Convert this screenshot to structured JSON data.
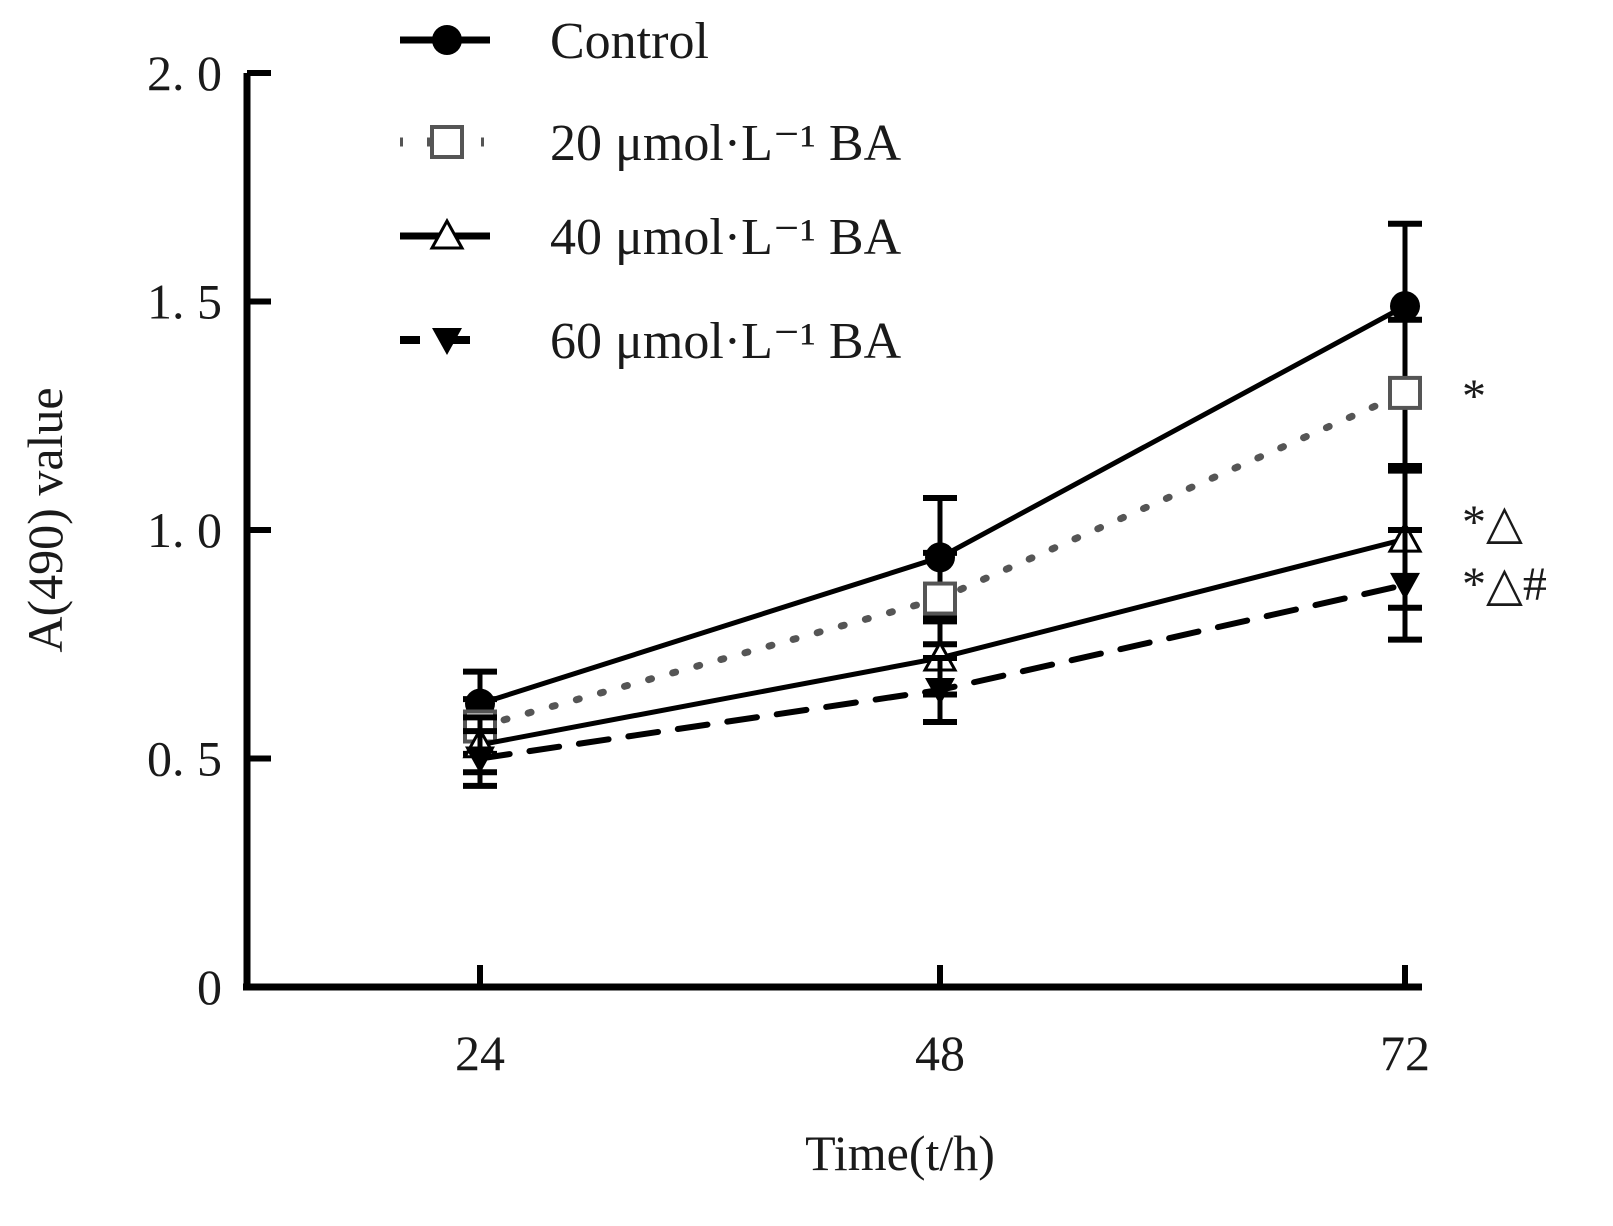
{
  "chart_data": {
    "type": "line",
    "title": "",
    "xlabel": "Time(t/h)",
    "ylabel": "A(490) value",
    "x": [
      24,
      48,
      72
    ],
    "x_tick_labels": [
      "24",
      "48",
      "72"
    ],
    "ylim": [
      0,
      2.0
    ],
    "y_ticks": [
      0,
      0.5,
      1.0,
      1.5,
      2.0
    ],
    "y_tick_labels": [
      "0",
      "0. 5",
      "1. 0",
      "1. 5",
      "2. 0"
    ],
    "grid": false,
    "legend_position": "top",
    "series": [
      {
        "name": "Control",
        "label_num": "",
        "label_unit": "",
        "values": [
          0.62,
          0.94,
          1.49
        ],
        "error": [
          0.07,
          0.13,
          0.18
        ],
        "marker": "filled-circle",
        "line": "solid",
        "color": "#000000"
      },
      {
        "name": "20 μmol·L⁻¹ BA",
        "label_num": "20",
        "label_unit": "μmol·L⁻¹ BA",
        "values": [
          0.57,
          0.85,
          1.3
        ],
        "error": [
          0.06,
          0.1,
          0.16
        ],
        "marker": "open-square",
        "line": "dotted",
        "color": "#555555"
      },
      {
        "name": "40 μmol·L⁻¹ BA",
        "label_num": "40",
        "label_unit": "μmol·L⁻¹ BA",
        "values": [
          0.53,
          0.72,
          0.98
        ],
        "error": [
          0.06,
          0.08,
          0.15
        ],
        "marker": "open-triangle",
        "line": "solid",
        "color": "#000000"
      },
      {
        "name": "60 μmol·L⁻¹ BA",
        "label_num": "60",
        "label_unit": "μmol·L⁻¹ BA",
        "values": [
          0.5,
          0.65,
          0.88
        ],
        "error": [
          0.06,
          0.07,
          0.12
        ],
        "marker": "filled-inverted-triangle",
        "line": "dashed",
        "color": "#000000"
      }
    ],
    "annotations": [
      {
        "series": "20 μmol·L⁻¹ BA",
        "x": 72,
        "text": "*"
      },
      {
        "series": "40 μmol·L⁻¹ BA",
        "x": 72,
        "text": "*△"
      },
      {
        "series": "60 μmol·L⁻¹ BA",
        "x": 72,
        "text": "*△#"
      }
    ]
  }
}
